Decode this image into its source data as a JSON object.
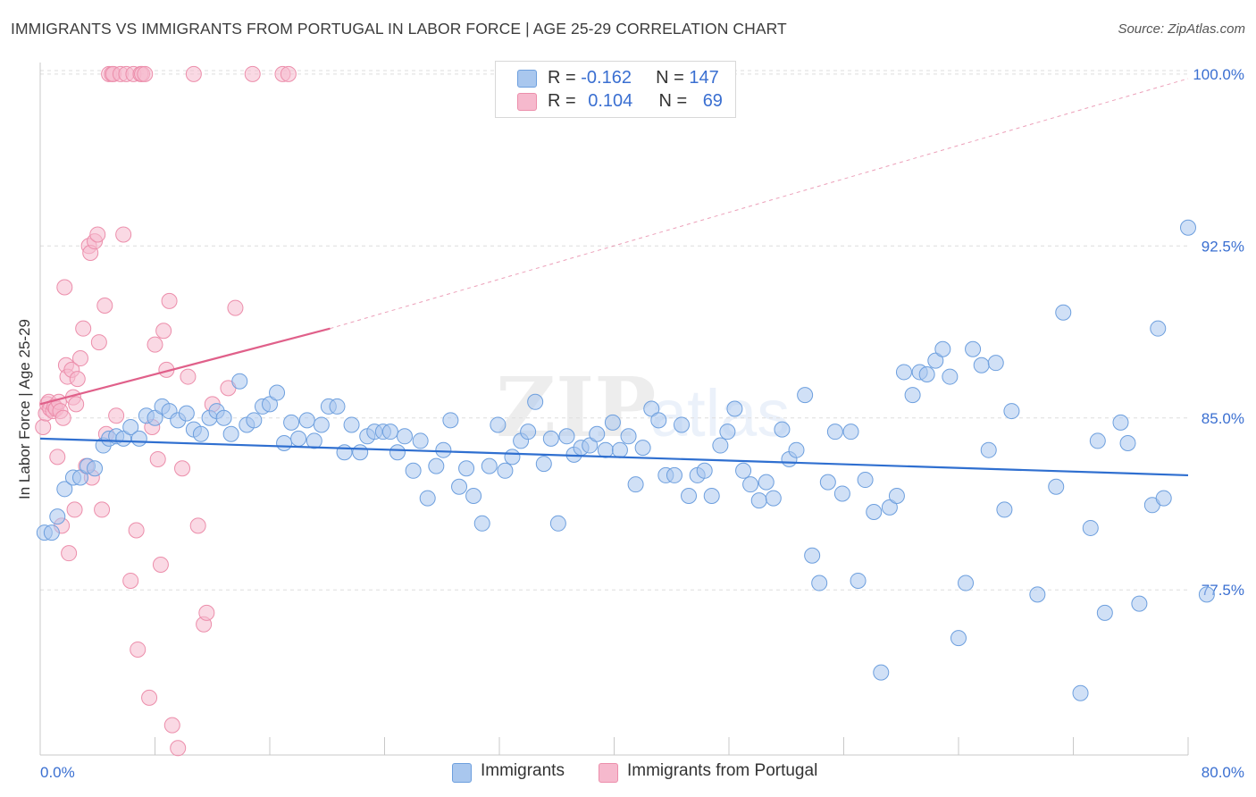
{
  "title": "IMMIGRANTS VS IMMIGRANTS FROM PORTUGAL IN LABOR FORCE | AGE 25-29 CORRELATION CHART",
  "source": "Source: ZipAtlas.com",
  "watermark": "ZIPatlas",
  "legend": {
    "row1": {
      "r_label": "R = ",
      "r_value": "-0.162",
      "n_label": "N = ",
      "n_value": "147"
    },
    "row2": {
      "r_label": "R = ",
      "r_value": "0.104",
      "n_label": "N = ",
      "n_value": "69"
    }
  },
  "colors": {
    "blue_fill": "#a9c7ee",
    "blue_stroke": "#6d9fde",
    "blue_line": "#2f6fd0",
    "pink_fill": "#f6b9cd",
    "pink_stroke": "#ec8eab",
    "pink_line": "#e0608a",
    "tick_label": "#3a6fd1",
    "grid": "#dedede"
  },
  "chart_data": {
    "type": "scatter",
    "ylabel": "In Labor Force | Age 25-29",
    "x_tick_labels": [
      "0.0%",
      "80.0%"
    ],
    "y_tick_labels": [
      "77.5%",
      "85.0%",
      "92.5%",
      "100.0%"
    ],
    "xlim": [
      0,
      80
    ],
    "ylim": [
      70.3,
      100.5
    ],
    "y_ticks": [
      77.5,
      85.0,
      92.5,
      100.0
    ],
    "grid": "horizontal dashed",
    "series": [
      {
        "name": "Immigrants",
        "color": "blue",
        "trend": {
          "x0": 0,
          "y0": 84.1,
          "x1": 80,
          "y1": 82.5
        },
        "points": [
          [
            0.3,
            80.0
          ],
          [
            0.8,
            80.0
          ],
          [
            1.2,
            80.7
          ],
          [
            1.7,
            81.9
          ],
          [
            2.3,
            82.4
          ],
          [
            2.8,
            82.4
          ],
          [
            3.3,
            82.9
          ],
          [
            3.8,
            82.8
          ],
          [
            4.4,
            83.8
          ],
          [
            4.8,
            84.1
          ],
          [
            5.3,
            84.2
          ],
          [
            5.8,
            84.1
          ],
          [
            6.3,
            84.6
          ],
          [
            6.9,
            84.1
          ],
          [
            7.4,
            85.1
          ],
          [
            8.0,
            85.0
          ],
          [
            8.5,
            85.5
          ],
          [
            9.0,
            85.3
          ],
          [
            9.6,
            84.9
          ],
          [
            10.2,
            85.2
          ],
          [
            10.7,
            84.5
          ],
          [
            11.2,
            84.3
          ],
          [
            11.8,
            85.0
          ],
          [
            12.3,
            85.3
          ],
          [
            12.8,
            85.0
          ],
          [
            13.3,
            84.3
          ],
          [
            13.9,
            86.6
          ],
          [
            14.4,
            84.7
          ],
          [
            14.9,
            84.9
          ],
          [
            15.5,
            85.5
          ],
          [
            16.0,
            85.6
          ],
          [
            16.5,
            86.1
          ],
          [
            17.0,
            83.9
          ],
          [
            17.5,
            84.8
          ],
          [
            18.0,
            84.1
          ],
          [
            18.6,
            84.9
          ],
          [
            19.1,
            84.0
          ],
          [
            19.6,
            84.7
          ],
          [
            20.1,
            85.5
          ],
          [
            20.7,
            85.5
          ],
          [
            21.2,
            83.5
          ],
          [
            21.7,
            84.7
          ],
          [
            22.3,
            83.5
          ],
          [
            22.8,
            84.2
          ],
          [
            23.3,
            84.4
          ],
          [
            23.9,
            84.4
          ],
          [
            24.4,
            84.4
          ],
          [
            24.9,
            83.5
          ],
          [
            25.4,
            84.2
          ],
          [
            26.0,
            82.7
          ],
          [
            26.5,
            84.0
          ],
          [
            27.0,
            81.5
          ],
          [
            27.6,
            82.9
          ],
          [
            28.1,
            83.6
          ],
          [
            28.6,
            84.9
          ],
          [
            29.2,
            82.0
          ],
          [
            29.7,
            82.8
          ],
          [
            30.2,
            81.6
          ],
          [
            30.8,
            80.4
          ],
          [
            31.3,
            82.9
          ],
          [
            31.9,
            84.7
          ],
          [
            32.4,
            82.7
          ],
          [
            32.9,
            83.3
          ],
          [
            33.5,
            84.0
          ],
          [
            34.0,
            84.4
          ],
          [
            34.5,
            85.7
          ],
          [
            35.1,
            83.0
          ],
          [
            35.6,
            84.1
          ],
          [
            36.1,
            80.4
          ],
          [
            36.7,
            84.2
          ],
          [
            37.2,
            83.4
          ],
          [
            37.7,
            83.7
          ],
          [
            38.3,
            83.8
          ],
          [
            38.8,
            84.3
          ],
          [
            39.4,
            83.6
          ],
          [
            39.9,
            84.8
          ],
          [
            40.4,
            83.6
          ],
          [
            41.0,
            84.2
          ],
          [
            41.5,
            82.1
          ],
          [
            42.0,
            83.7
          ],
          [
            42.6,
            85.4
          ],
          [
            43.1,
            84.9
          ],
          [
            43.6,
            82.5
          ],
          [
            44.2,
            82.5
          ],
          [
            44.7,
            84.7
          ],
          [
            45.2,
            81.6
          ],
          [
            45.8,
            82.5
          ],
          [
            46.3,
            82.7
          ],
          [
            46.8,
            81.6
          ],
          [
            47.4,
            83.8
          ],
          [
            47.9,
            84.4
          ],
          [
            48.4,
            85.4
          ],
          [
            49.0,
            82.7
          ],
          [
            49.5,
            82.1
          ],
          [
            50.1,
            81.4
          ],
          [
            50.6,
            82.2
          ],
          [
            51.1,
            81.5
          ],
          [
            51.7,
            84.5
          ],
          [
            52.2,
            83.2
          ],
          [
            52.7,
            83.6
          ],
          [
            53.3,
            86.0
          ],
          [
            53.8,
            79.0
          ],
          [
            54.3,
            77.8
          ],
          [
            54.9,
            82.2
          ],
          [
            55.4,
            84.4
          ],
          [
            55.9,
            81.7
          ],
          [
            56.5,
            84.4
          ],
          [
            57.0,
            77.9
          ],
          [
            57.5,
            82.3
          ],
          [
            58.1,
            80.9
          ],
          [
            58.6,
            73.9
          ],
          [
            59.2,
            81.1
          ],
          [
            59.7,
            81.6
          ],
          [
            60.2,
            87.0
          ],
          [
            60.8,
            86.0
          ],
          [
            61.3,
            87.0
          ],
          [
            61.8,
            86.9
          ],
          [
            62.4,
            87.5
          ],
          [
            62.9,
            88.0
          ],
          [
            63.4,
            86.8
          ],
          [
            64.0,
            75.4
          ],
          [
            64.5,
            77.8
          ],
          [
            65.0,
            88.0
          ],
          [
            65.6,
            87.3
          ],
          [
            66.1,
            83.6
          ],
          [
            66.6,
            87.4
          ],
          [
            67.2,
            81.0
          ],
          [
            67.7,
            85.3
          ],
          [
            69.5,
            77.3
          ],
          [
            70.8,
            82.0
          ],
          [
            71.3,
            89.6
          ],
          [
            72.5,
            73.0
          ],
          [
            73.2,
            80.2
          ],
          [
            73.7,
            84.0
          ],
          [
            74.2,
            76.5
          ],
          [
            75.3,
            84.8
          ],
          [
            75.8,
            83.9
          ],
          [
            76.6,
            76.9
          ],
          [
            77.5,
            81.2
          ],
          [
            77.9,
            88.9
          ],
          [
            78.3,
            81.5
          ],
          [
            80.0,
            93.3
          ],
          [
            81.3,
            77.3
          ]
        ]
      },
      {
        "name": "Immigrants from Portugal",
        "color": "pink",
        "trend": {
          "x0": 0,
          "y0": 85.6,
          "x1": 20.2,
          "y1": 88.9
        },
        "trend_dashed": {
          "x0": 20.2,
          "y0": 88.9,
          "x1": 80,
          "y1": 99.8
        },
        "points": [
          [
            0.2,
            84.6
          ],
          [
            0.4,
            85.2
          ],
          [
            0.5,
            85.6
          ],
          [
            0.6,
            85.7
          ],
          [
            0.7,
            85.4
          ],
          [
            0.9,
            85.3
          ],
          [
            1.0,
            85.5
          ],
          [
            1.1,
            85.4
          ],
          [
            1.2,
            83.3
          ],
          [
            1.3,
            85.7
          ],
          [
            1.4,
            85.3
          ],
          [
            1.5,
            80.3
          ],
          [
            1.6,
            85.0
          ],
          [
            1.7,
            90.7
          ],
          [
            1.8,
            87.3
          ],
          [
            1.9,
            86.8
          ],
          [
            2.0,
            79.1
          ],
          [
            2.2,
            87.1
          ],
          [
            2.3,
            85.9
          ],
          [
            2.4,
            81.0
          ],
          [
            2.5,
            85.6
          ],
          [
            2.6,
            86.7
          ],
          [
            2.8,
            87.6
          ],
          [
            3.0,
            88.9
          ],
          [
            3.2,
            82.9
          ],
          [
            3.4,
            92.5
          ],
          [
            3.5,
            92.2
          ],
          [
            3.6,
            82.4
          ],
          [
            3.8,
            92.7
          ],
          [
            4.0,
            93.0
          ],
          [
            4.1,
            88.3
          ],
          [
            4.3,
            81.0
          ],
          [
            4.5,
            89.9
          ],
          [
            4.6,
            84.3
          ],
          [
            4.8,
            100.0
          ],
          [
            5.0,
            100.0
          ],
          [
            5.1,
            100.0
          ],
          [
            5.3,
            85.1
          ],
          [
            5.6,
            100.0
          ],
          [
            5.8,
            93.0
          ],
          [
            6.0,
            100.0
          ],
          [
            6.3,
            77.9
          ],
          [
            6.5,
            100.0
          ],
          [
            6.7,
            80.1
          ],
          [
            6.8,
            74.9
          ],
          [
            7.0,
            100.0
          ],
          [
            7.1,
            100.0
          ],
          [
            7.3,
            100.0
          ],
          [
            7.6,
            72.8
          ],
          [
            7.8,
            84.6
          ],
          [
            8.0,
            88.2
          ],
          [
            8.2,
            83.2
          ],
          [
            8.4,
            78.6
          ],
          [
            8.6,
            88.8
          ],
          [
            8.8,
            87.1
          ],
          [
            9.0,
            90.1
          ],
          [
            9.2,
            71.6
          ],
          [
            9.6,
            70.6
          ],
          [
            9.9,
            82.8
          ],
          [
            10.3,
            86.8
          ],
          [
            10.7,
            100.0
          ],
          [
            11.0,
            80.3
          ],
          [
            11.4,
            76.0
          ],
          [
            11.6,
            76.5
          ],
          [
            12.0,
            85.6
          ],
          [
            13.1,
            86.3
          ],
          [
            13.6,
            89.8
          ],
          [
            14.8,
            100.0
          ],
          [
            16.9,
            100.0
          ],
          [
            17.3,
            100.0
          ]
        ]
      }
    ]
  }
}
